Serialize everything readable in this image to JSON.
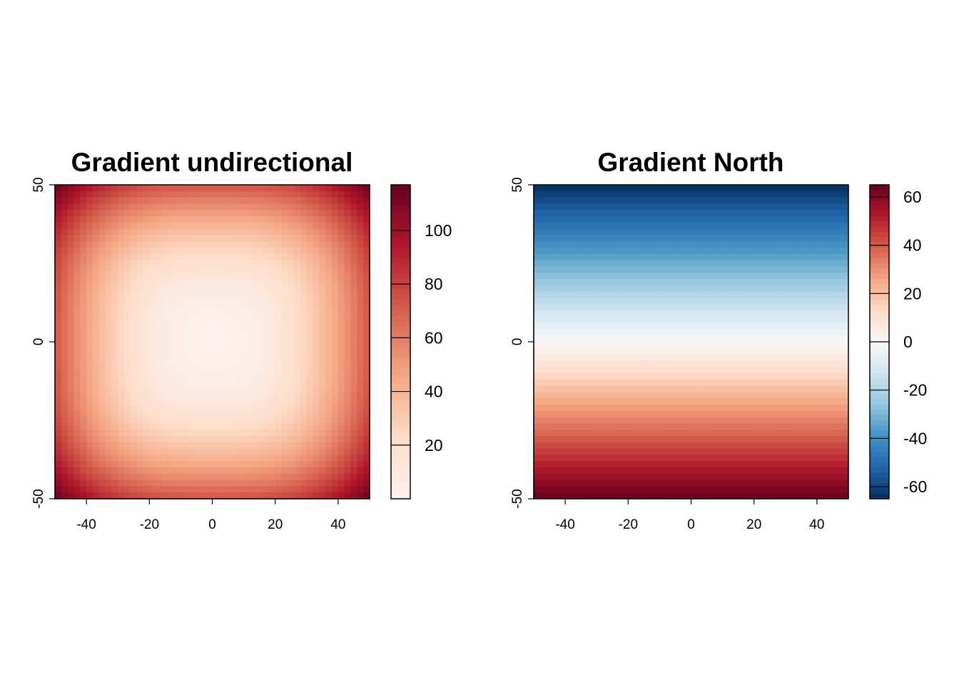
{
  "chart_data": [
    {
      "type": "heatmap",
      "title": "Gradient undirectional",
      "xlim": [
        -50,
        50
      ],
      "ylim": [
        -50,
        50
      ],
      "x_ticks": [
        -40,
        -20,
        0,
        20,
        40
      ],
      "y_ticks": [
        -50,
        0,
        50
      ],
      "grid_cells": 50,
      "value_function": "distance from center (0,0) in a rounded-square shape; 0 at center rising to about 117 at the corners",
      "value_range": [
        0,
        117
      ],
      "legend": {
        "placement": "right",
        "ticks": [
          20,
          40,
          60,
          80,
          100
        ],
        "min": 0,
        "max": 117,
        "palette": [
          "#fcf2ee",
          "#fddbc7",
          "#f4a582",
          "#d6604d",
          "#b2182b",
          "#67001f"
        ]
      }
    },
    {
      "type": "heatmap",
      "title": "Gradient North",
      "xlim": [
        -50,
        50
      ],
      "ylim": [
        -50,
        50
      ],
      "x_ticks": [
        -40,
        -20,
        0,
        20,
        40
      ],
      "y_ticks": [
        -50,
        0,
        50
      ],
      "grid_cells": 50,
      "value_function": "decreases linearly with y: about 65 at the bottom (y=-50) to about -65 at the top (y=50)",
      "value_range": [
        -65,
        65
      ],
      "legend": {
        "placement": "right",
        "ticks": [
          -60,
          -40,
          -20,
          0,
          20,
          40,
          60
        ],
        "min": -65,
        "max": 65,
        "palette": [
          "#053061",
          "#2166ac",
          "#4393c3",
          "#92c5de",
          "#d1e5f0",
          "#f7f7f7",
          "#fddbc7",
          "#f4a582",
          "#d6604d",
          "#b2182b",
          "#67001f"
        ]
      }
    }
  ]
}
